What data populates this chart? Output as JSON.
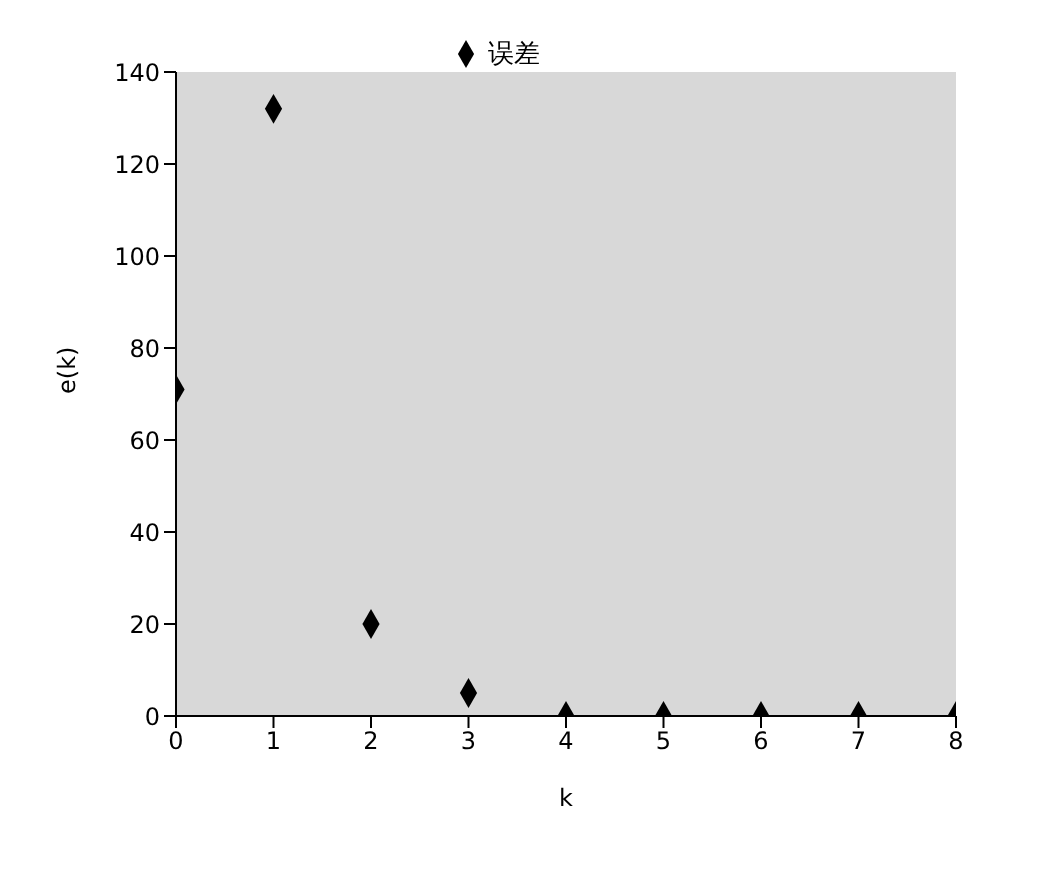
{
  "chart_data": {
    "type": "scatter",
    "xlabel": "k",
    "ylabel": "e(k)",
    "x": [
      0,
      1,
      2,
      3,
      4,
      5,
      6,
      7,
      8
    ],
    "series": [
      {
        "name": "误差",
        "color": "#000000",
        "values": [
          71,
          132,
          20,
          5,
          0,
          0,
          0,
          0,
          0
        ]
      }
    ],
    "xlim": [
      0,
      8
    ],
    "xticks": [
      0,
      1,
      2,
      3,
      4,
      5,
      6,
      7,
      8
    ],
    "ylim": [
      0,
      140
    ],
    "yticks": [
      0,
      20,
      40,
      60,
      80,
      100,
      120,
      140
    ],
    "marker": "diamond",
    "legend": "top",
    "grid": false
  }
}
